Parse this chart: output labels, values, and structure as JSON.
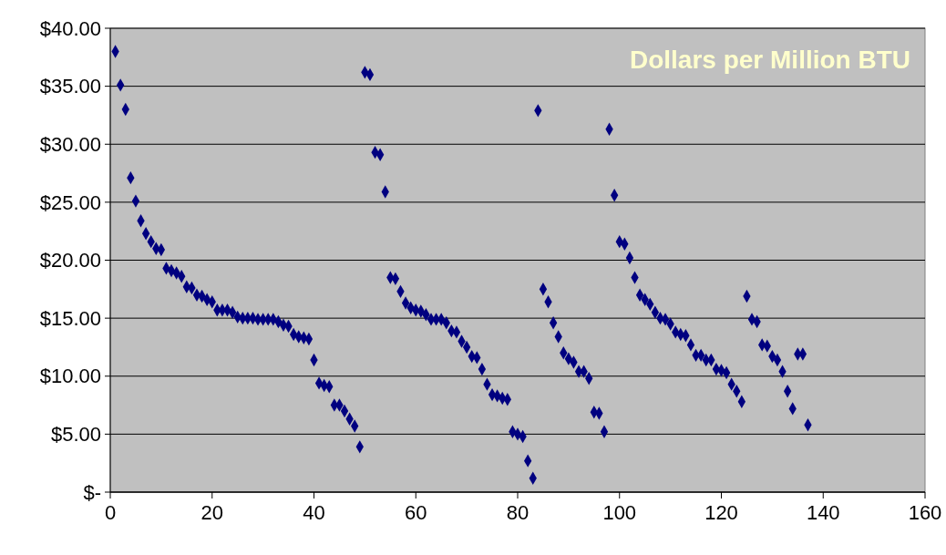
{
  "chart_data": {
    "type": "scatter",
    "title": "Dollars per Million BTU",
    "marker": "diamond",
    "grid": "y",
    "xlim": [
      0,
      160
    ],
    "xticks": [
      0,
      20,
      40,
      60,
      80,
      100,
      120,
      140,
      160
    ],
    "ylim": [
      0,
      40
    ],
    "yticks": [
      {
        "value": 0,
        "label": "$-"
      },
      {
        "value": 5,
        "label": "$5.00"
      },
      {
        "value": 10,
        "label": "$10.00"
      },
      {
        "value": 15,
        "label": "$15.00"
      },
      {
        "value": 20,
        "label": "$20.00"
      },
      {
        "value": 25,
        "label": "$25.00"
      },
      {
        "value": 30,
        "label": "$30.00"
      },
      {
        "value": 35,
        "label": "$35.00"
      },
      {
        "value": 40,
        "label": "$40.00"
      }
    ],
    "x": [
      1,
      2,
      3,
      4,
      5,
      6,
      7,
      8,
      9,
      10,
      11,
      12,
      13,
      14,
      15,
      16,
      17,
      18,
      19,
      20,
      21,
      22,
      23,
      24,
      25,
      26,
      27,
      28,
      29,
      30,
      31,
      32,
      33,
      34,
      35,
      36,
      37,
      38,
      39,
      40,
      41,
      42,
      43,
      44,
      45,
      46,
      47,
      48,
      49,
      50,
      51,
      52,
      53,
      54,
      55,
      56,
      57,
      58,
      59,
      60,
      61,
      62,
      63,
      64,
      65,
      66,
      67,
      68,
      69,
      70,
      71,
      72,
      73,
      74,
      75,
      76,
      77,
      78,
      79,
      80,
      81,
      82,
      83,
      84,
      85,
      86,
      87,
      88,
      89,
      90,
      91,
      92,
      93,
      94,
      95,
      96,
      97,
      98,
      99,
      100,
      101,
      102,
      103,
      104,
      105,
      106,
      107,
      108,
      109,
      110,
      111,
      112,
      113,
      114,
      115,
      116,
      117,
      118,
      119,
      120,
      121,
      122,
      123,
      124,
      125,
      126,
      127,
      128,
      129,
      130,
      131,
      132,
      133,
      134,
      135,
      136,
      137
    ],
    "series": [
      {
        "color": "#000080",
        "values": [
          38.0,
          35.1,
          33.0,
          27.1,
          25.1,
          23.4,
          22.3,
          21.6,
          21.0,
          20.9,
          19.3,
          19.1,
          18.9,
          18.6,
          17.7,
          17.6,
          17.0,
          16.9,
          16.6,
          16.4,
          15.7,
          15.7,
          15.7,
          15.5,
          15.1,
          15.0,
          15.0,
          15.0,
          14.9,
          14.9,
          14.9,
          14.9,
          14.7,
          14.4,
          14.3,
          13.6,
          13.4,
          13.3,
          13.2,
          11.4,
          9.4,
          9.2,
          9.1,
          7.5,
          7.5,
          7.0,
          6.3,
          5.7,
          3.9,
          36.2,
          36.0,
          29.3,
          29.1,
          25.9,
          18.5,
          18.4,
          17.3,
          16.3,
          15.9,
          15.7,
          15.6,
          15.3,
          14.9,
          14.9,
          14.9,
          14.6,
          13.9,
          13.8,
          13.0,
          12.5,
          11.7,
          11.6,
          10.6,
          9.3,
          8.4,
          8.3,
          8.1,
          8.0,
          5.2,
          5.0,
          4.8,
          2.7,
          1.2,
          32.9,
          17.5,
          16.4,
          14.6,
          13.4,
          12.0,
          11.5,
          11.2,
          10.4,
          10.4,
          9.8,
          6.9,
          6.8,
          5.2,
          31.3,
          25.6,
          21.6,
          21.4,
          20.2,
          18.5,
          17.0,
          16.6,
          16.2,
          15.5,
          15.0,
          14.9,
          14.5,
          13.8,
          13.6,
          13.5,
          12.7,
          11.8,
          11.8,
          11.4,
          11.4,
          10.6,
          10.5,
          10.3,
          9.3,
          8.7,
          7.8,
          16.9,
          14.9,
          14.7,
          12.7,
          12.6,
          11.7,
          11.4,
          10.4,
          8.7,
          7.2,
          11.9,
          11.9,
          5.8
        ]
      }
    ]
  }
}
